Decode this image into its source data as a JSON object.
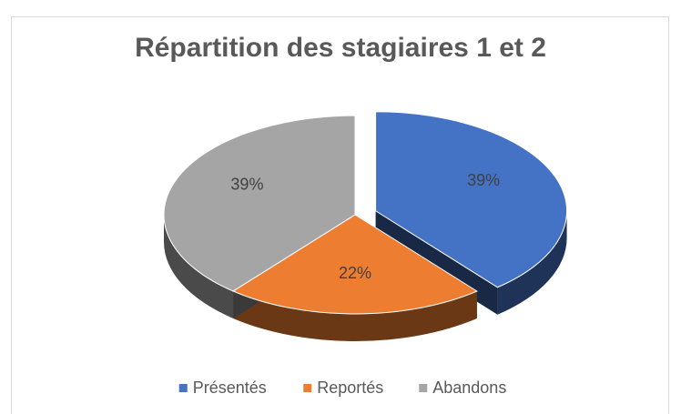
{
  "chart_data": {
    "type": "pie",
    "title": "Répartition des stagiaires 1 et 2",
    "categories": [
      "Présentés",
      "Reportés",
      "Abandons"
    ],
    "values": [
      39,
      22,
      39
    ],
    "value_labels": [
      "39%",
      "22%",
      "39%"
    ],
    "colors": [
      "#4472c4",
      "#ed7d31",
      "#a5a5a5"
    ],
    "exploded": [
      true,
      false,
      false
    ],
    "legend": "bottom"
  }
}
